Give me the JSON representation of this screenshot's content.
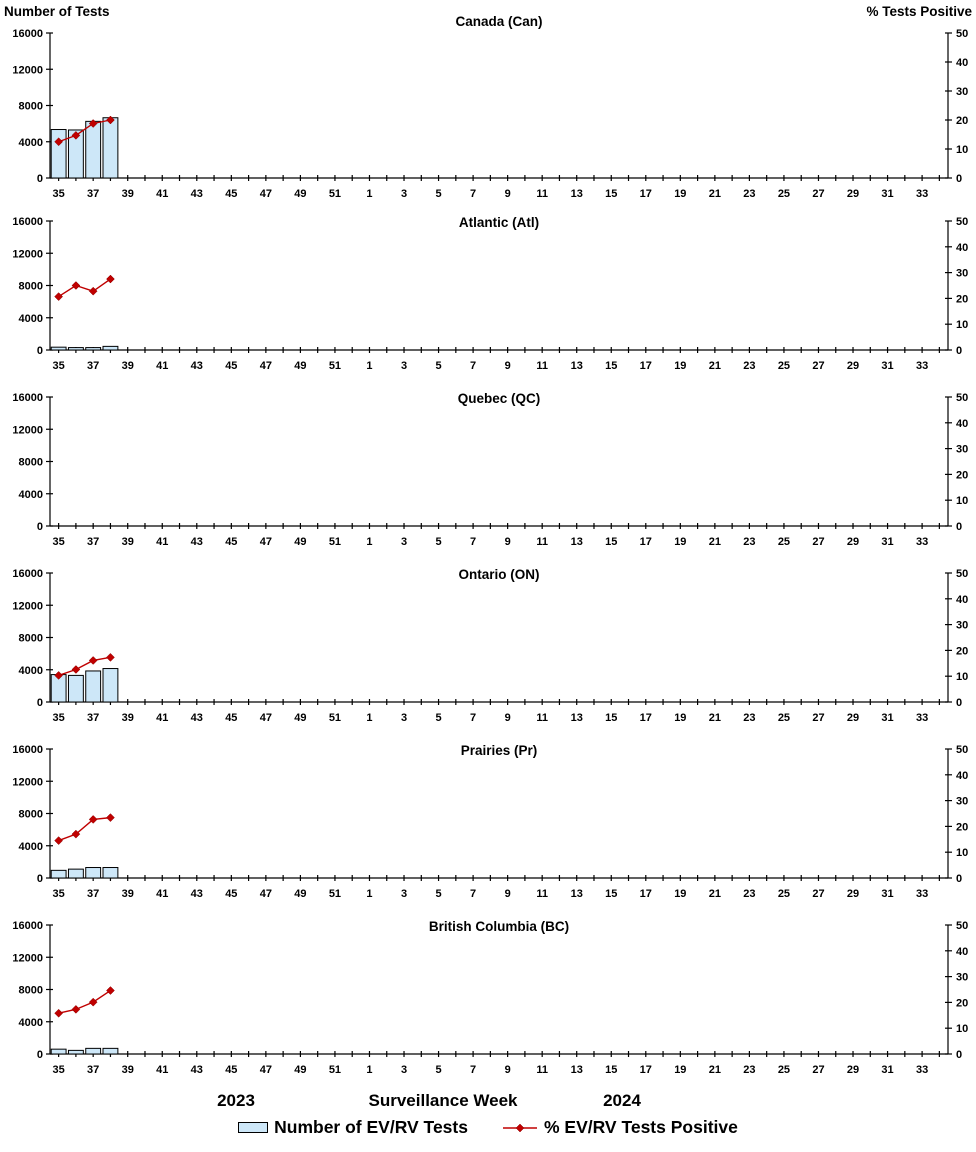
{
  "header": {
    "left_axis_label": "Number of Tests",
    "right_axis_label": "% Tests Positive"
  },
  "footer": {
    "year_left": "2023",
    "x_axis_title": "Surveillance Week",
    "year_right": "2024"
  },
  "legend": {
    "bar_label": "Number of EV/RV Tests",
    "line_label": "% EV/RV Tests Positive"
  },
  "colors": {
    "bar_fill": "#CDE7F8",
    "bar_stroke": "#000000",
    "line_color": "#C00000",
    "marker_color": "#C00000",
    "axis_color": "#000000",
    "text_color": "#000000"
  },
  "axis": {
    "left_ticks": [
      0,
      4000,
      8000,
      12000,
      16000
    ],
    "right_ticks": [
      0,
      10,
      20,
      30,
      40,
      50
    ],
    "left_max": 16000,
    "right_max": 50,
    "x_start_week": 35,
    "x_num_weeks": 52,
    "x_labeled_weeks": [
      35,
      37,
      39,
      41,
      43,
      45,
      47,
      49,
      51,
      1,
      3,
      5,
      7,
      9,
      11,
      13,
      15,
      17,
      19,
      21,
      23,
      25,
      27,
      29,
      31,
      33
    ]
  },
  "chart_data": [
    {
      "type": "bar",
      "overlay": "line",
      "title": "Canada (Can)",
      "xlabel": "Surveillance Week",
      "ylabel_left": "Number of Tests",
      "ylabel_right": "% Tests Positive",
      "ylim_left": [
        0,
        16000
      ],
      "ylim_right": [
        0,
        50
      ],
      "x_weeks": [
        35,
        36,
        37,
        38
      ],
      "series": [
        {
          "name": "Number of EV/RV Tests",
          "type": "bar",
          "axis": "left",
          "values": [
            5350,
            5300,
            6250,
            6650
          ]
        },
        {
          "name": "% EV/RV Tests Positive",
          "type": "line",
          "axis": "right",
          "values": [
            12.5,
            14.7,
            18.8,
            20.0
          ]
        }
      ]
    },
    {
      "type": "bar",
      "overlay": "line",
      "title": "Atlantic (Atl)",
      "xlabel": "Surveillance Week",
      "ylabel_left": "Number of Tests",
      "ylabel_right": "% Tests Positive",
      "ylim_left": [
        0,
        16000
      ],
      "ylim_right": [
        0,
        50
      ],
      "x_weeks": [
        35,
        36,
        37,
        38
      ],
      "series": [
        {
          "name": "Number of EV/RV Tests",
          "type": "bar",
          "axis": "left",
          "values": [
            350,
            300,
            300,
            450
          ]
        },
        {
          "name": "% EV/RV Tests Positive",
          "type": "line",
          "axis": "right",
          "values": [
            20.7,
            25.0,
            22.8,
            27.5
          ]
        }
      ]
    },
    {
      "type": "bar",
      "overlay": "line",
      "title": "Quebec (QC)",
      "xlabel": "Surveillance Week",
      "ylabel_left": "Number of Tests",
      "ylabel_right": "% Tests Positive",
      "ylim_left": [
        0,
        16000
      ],
      "ylim_right": [
        0,
        50
      ],
      "x_weeks": [],
      "series": [
        {
          "name": "Number of EV/RV Tests",
          "type": "bar",
          "axis": "left",
          "values": []
        },
        {
          "name": "% EV/RV Tests Positive",
          "type": "line",
          "axis": "right",
          "values": []
        }
      ]
    },
    {
      "type": "bar",
      "overlay": "line",
      "title": "Ontario (ON)",
      "xlabel": "Surveillance Week",
      "ylabel_left": "Number of Tests",
      "ylabel_right": "% Tests Positive",
      "ylim_left": [
        0,
        16000
      ],
      "ylim_right": [
        0,
        50
      ],
      "x_weeks": [
        35,
        36,
        37,
        38
      ],
      "series": [
        {
          "name": "Number of EV/RV Tests",
          "type": "bar",
          "axis": "left",
          "values": [
            3400,
            3300,
            3850,
            4150
          ]
        },
        {
          "name": "% EV/RV Tests Positive",
          "type": "line",
          "axis": "right",
          "values": [
            10.3,
            12.6,
            16.1,
            17.3
          ]
        }
      ]
    },
    {
      "type": "bar",
      "overlay": "line",
      "title": "Prairies (Pr)",
      "xlabel": "Surveillance Week",
      "ylabel_left": "Number of Tests",
      "ylabel_right": "% Tests Positive",
      "ylim_left": [
        0,
        16000
      ],
      "ylim_right": [
        0,
        50
      ],
      "x_weeks": [
        35,
        36,
        37,
        38
      ],
      "series": [
        {
          "name": "Number of EV/RV Tests",
          "type": "bar",
          "axis": "left",
          "values": [
            950,
            1100,
            1300,
            1300
          ]
        },
        {
          "name": "% EV/RV Tests Positive",
          "type": "line",
          "axis": "right",
          "values": [
            14.5,
            17.0,
            22.7,
            23.4
          ]
        }
      ]
    },
    {
      "type": "bar",
      "overlay": "line",
      "title": "British Columbia (BC)",
      "xlabel": "Surveillance Week",
      "ylabel_left": "Number of Tests",
      "ylabel_right": "% Tests Positive",
      "ylim_left": [
        0,
        16000
      ],
      "ylim_right": [
        0,
        50
      ],
      "x_weeks": [
        35,
        36,
        37,
        38
      ],
      "series": [
        {
          "name": "Number of EV/RV Tests",
          "type": "bar",
          "axis": "left",
          "values": [
            600,
            450,
            700,
            700
          ]
        },
        {
          "name": "% EV/RV Tests Positive",
          "type": "line",
          "axis": "right",
          "values": [
            15.8,
            17.3,
            20.1,
            24.6
          ]
        }
      ]
    }
  ]
}
